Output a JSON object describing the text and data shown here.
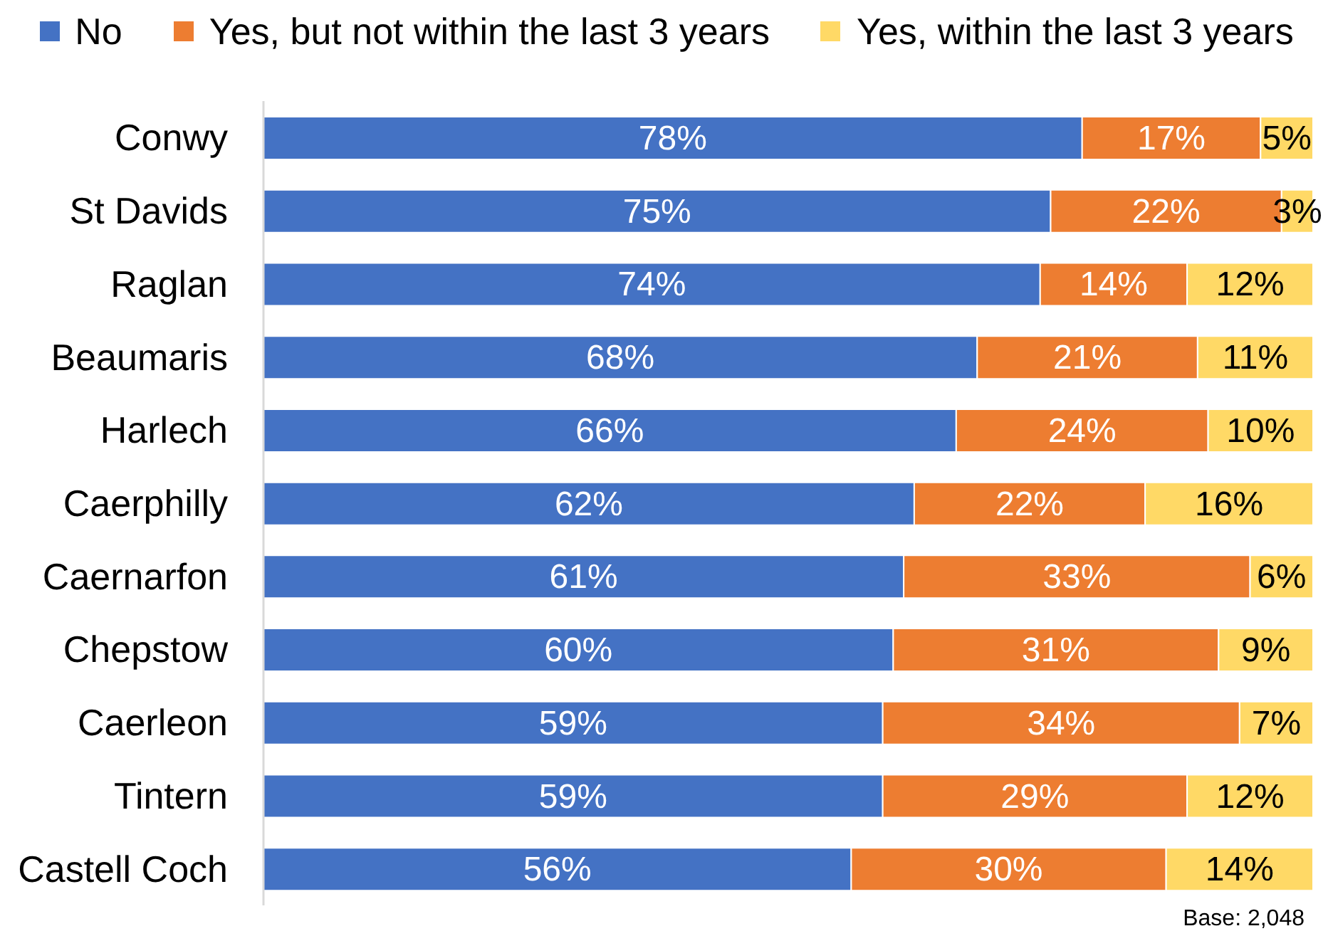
{
  "chart_data": {
    "type": "bar",
    "orientation": "horizontal",
    "stacked": true,
    "categories": [
      "Conwy",
      "St Davids",
      "Raglan",
      "Beaumaris",
      "Harlech",
      "Caerphilly",
      "Caernarfon",
      "Chepstow",
      "Caerleon",
      "Tintern",
      "Castell Coch"
    ],
    "series": [
      {
        "name": "No",
        "color": "#4472c4",
        "values": [
          78,
          75,
          74,
          68,
          66,
          62,
          61,
          60,
          59,
          59,
          56
        ],
        "value_labels": [
          "78%",
          "75%",
          "74%",
          "68%",
          "66%",
          "62%",
          "61%",
          "60%",
          "59%",
          "59%",
          "56%"
        ]
      },
      {
        "name": "Yes, but not within the last 3 years",
        "color": "#ed7d31",
        "values": [
          17,
          22,
          14,
          21,
          24,
          22,
          33,
          31,
          34,
          29,
          30
        ],
        "value_labels": [
          "17%",
          "22%",
          "14%",
          "21%",
          "24%",
          "22%",
          "33%",
          "31%",
          "34%",
          "29%",
          "30%"
        ]
      },
      {
        "name": "Yes, within the last 3 years",
        "color": "#ffd966",
        "values": [
          5,
          3,
          12,
          11,
          10,
          16,
          6,
          9,
          7,
          12,
          14
        ],
        "value_labels": [
          "5%",
          "3%",
          "12%",
          "11%",
          "10%",
          "16%",
          "6%",
          "9%",
          "7%",
          "12%",
          "14%"
        ]
      }
    ],
    "xlim": [
      0,
      100
    ],
    "tick_labels": "y",
    "legend": "top",
    "annotations": [
      "Base: 2,048"
    ]
  }
}
